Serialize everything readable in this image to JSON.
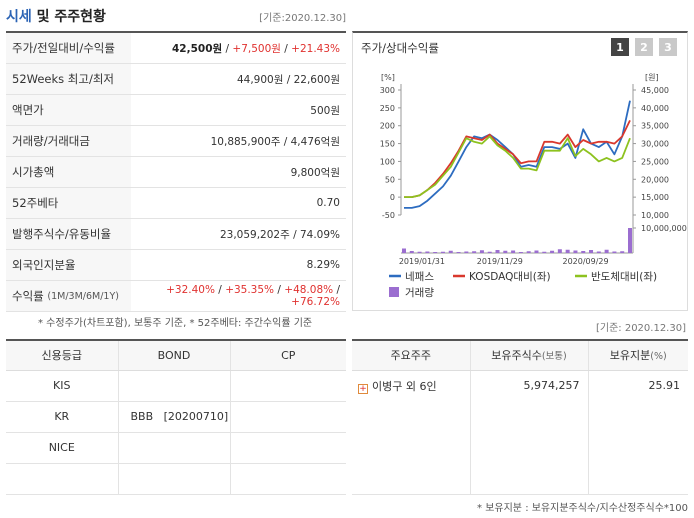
{
  "header": {
    "title_part1": "시세",
    "title_part2": " 및 주주현황",
    "base_date": "[기준:2020.12.30]"
  },
  "price_rows": [
    {
      "label": "주가/전일대비/수익률"
    },
    {
      "label": "52Weeks 최고/최저",
      "value": "44,900원 / 22,600원"
    },
    {
      "label": "액면가",
      "value": "500원"
    },
    {
      "label": "거래량/거래대금",
      "value": "10,885,900주 / 4,476억원"
    },
    {
      "label": "시가총액",
      "value": "9,800억원"
    },
    {
      "label": "52주베타",
      "value": "0.70"
    },
    {
      "label": "발행주식수/유동비율",
      "value": "23,059,202주 / 74.09%"
    },
    {
      "label": "외국인지분율",
      "value": "8.29%"
    },
    {
      "label": "수익률",
      "label_sub": "(1M/3M/6M/1Y)"
    }
  ],
  "price": {
    "current": "42,500원",
    "change": "+7,500원",
    "rate": "+21.43%",
    "sep": " / "
  },
  "returns": {
    "m1": "+32.40%",
    "m3": "+35.35%",
    "m6": "+48.08%",
    "y1": "+76.72%",
    "sep": "/"
  },
  "note_left": "* 수정주가(차트포함), 보통주 기준, * 52주베타: 주간수익률 기준",
  "chart_panel": {
    "title": "주가/상대수익률",
    "pages": [
      "1",
      "2",
      "3"
    ],
    "active_page": 0,
    "left_unit": "[%]",
    "right_unit": "[원]",
    "legend": {
      "s1": "네패스",
      "s2": "KOSDAQ대비(좌)",
      "s3": "반도체대비(좌)",
      "s4": "거래량"
    }
  },
  "chart_data": {
    "type": "line",
    "x_tick_labels": [
      "2019/01/31",
      "2019/11/29",
      "2020/09/29"
    ],
    "y_left_ticks": [
      "300",
      "250",
      "200",
      "150",
      "100",
      "50",
      "0",
      "-50"
    ],
    "y_left_range": [
      -50,
      300
    ],
    "y_right_ticks": [
      "45,000",
      "40,000",
      "35,000",
      "30,000",
      "25,000",
      "20,000",
      "15,000",
      "10,000"
    ],
    "y_right_range": [
      10000,
      45000
    ],
    "volume_tick": "10,000,000",
    "volume_range": [
      0,
      10000000
    ],
    "colors": {
      "s1": "#2d6cc0",
      "s2": "#d9382d",
      "s3": "#8dc21f",
      "s4": "#9b6ed0"
    },
    "series": [
      {
        "name": "네패스",
        "values": [
          -30,
          -30,
          -25,
          -10,
          10,
          30,
          60,
          100,
          140,
          170,
          165,
          175,
          160,
          140,
          120,
          85,
          90,
          85,
          140,
          140,
          135,
          150,
          110,
          190,
          150,
          140,
          155,
          120,
          170,
          270
        ]
      },
      {
        "name": "KOSDAQ대비(좌)",
        "values": [
          0,
          0,
          5,
          20,
          40,
          65,
          95,
          130,
          170,
          165,
          160,
          175,
          150,
          135,
          120,
          95,
          100,
          100,
          155,
          155,
          150,
          175,
          140,
          160,
          150,
          155,
          155,
          150,
          170,
          215
        ]
      },
      {
        "name": "반도체대비(좌)",
        "values": [
          0,
          0,
          5,
          20,
          35,
          60,
          85,
          125,
          165,
          155,
          150,
          170,
          145,
          130,
          110,
          80,
          80,
          75,
          130,
          130,
          130,
          165,
          115,
          135,
          120,
          100,
          110,
          100,
          110,
          165
        ]
      }
    ],
    "volume": [
      1800000,
      800000,
      500000,
      600000,
      400000,
      500000,
      900000,
      400000,
      600000,
      700000,
      1100000,
      500000,
      1200000,
      900000,
      1000000,
      400000,
      700000,
      1000000,
      500000,
      900000,
      1500000,
      1300000,
      1000000,
      800000,
      1200000,
      600000,
      1300000,
      600000,
      700000,
      10000000
    ]
  },
  "base_date2": "[기준: 2020.12.30]",
  "credit": {
    "headers": [
      "신용등급",
      "BOND",
      "CP"
    ],
    "rows": [
      {
        "agency": "KIS",
        "bond": "",
        "cp": ""
      },
      {
        "agency": "KR",
        "bond": "BBB   [20200710]",
        "cp": ""
      },
      {
        "agency": "NICE",
        "bond": "",
        "cp": ""
      },
      {
        "agency": "",
        "bond": "",
        "cp": ""
      }
    ]
  },
  "holders": {
    "h1": "주요주주",
    "h2": "보유주식수",
    "h2_sub": "(보통)",
    "h3": "보유지분",
    "h3_sub": "(%)",
    "row": {
      "name": "이병구 외 6인",
      "shares": "5,974,257",
      "pct": "25.91"
    }
  },
  "note_right": "* 보유지분 : 보유지분주식수/지수산정주식수*100"
}
